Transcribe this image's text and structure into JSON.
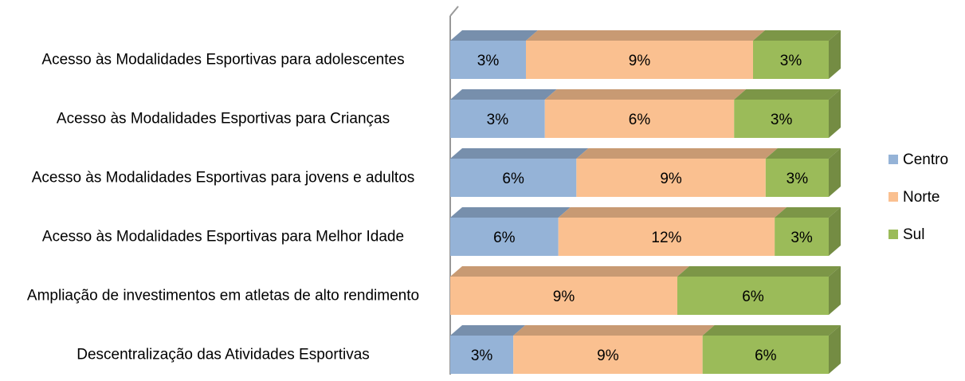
{
  "chart_data": {
    "type": "stacked_bar_100_horizontal",
    "categories": [
      "Acesso às Modalidades Esportivas para adolescentes",
      "Acesso às Modalidades Esportivas para Crianças",
      "Acesso às Modalidades Esportivas para jovens e adultos",
      "Acesso às Modalidades Esportivas para Melhor Idade",
      "Ampliação de investimentos em atletas de alto rendimento",
      "Descentralização das Atividades Esportivas"
    ],
    "series": [
      {
        "name": "Centro",
        "color": "#95b3d7",
        "values": [
          3,
          3,
          6,
          6,
          null,
          3
        ],
        "value_labels": [
          "3%",
          "3%",
          "6%",
          "6%",
          null,
          "3%"
        ]
      },
      {
        "name": "Norte",
        "color": "#fac090",
        "values": [
          9,
          6,
          9,
          12,
          9,
          9
        ],
        "value_labels": [
          "9%",
          "6%",
          "9%",
          "12%",
          "9%",
          "9%"
        ]
      },
      {
        "name": "Sul",
        "color": "#9bbb59",
        "values": [
          3,
          3,
          3,
          3,
          6,
          6
        ],
        "value_labels": [
          "3%",
          "3%",
          "3%",
          "3%",
          "6%",
          "6%"
        ]
      }
    ],
    "legend": "right"
  }
}
